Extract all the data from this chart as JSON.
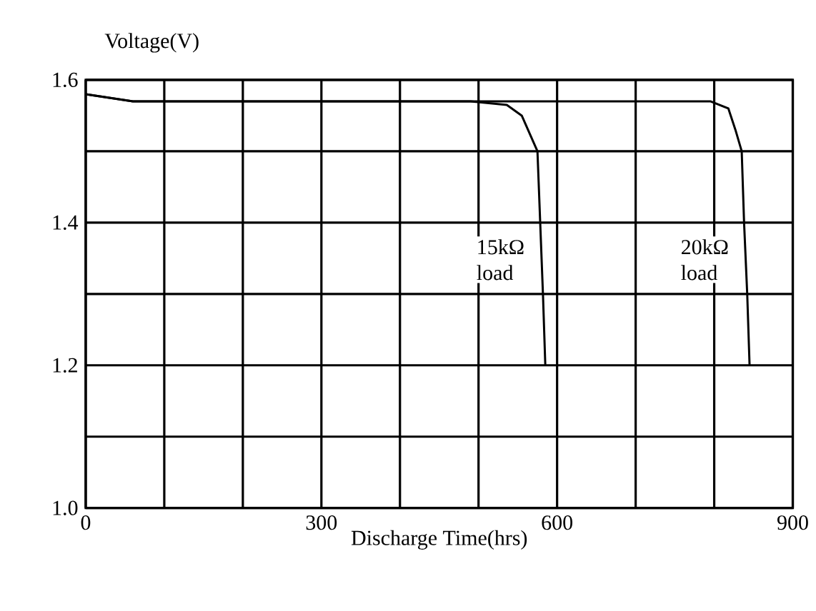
{
  "chart_data": {
    "type": "line",
    "xlabel": "Discharge Time(hrs)",
    "ylabel": "Voltage(V)",
    "xlim": [
      0,
      900
    ],
    "ylim": [
      1.0,
      1.6
    ],
    "xticks": [
      0,
      {
        "value": 100,
        "label": null
      },
      {
        "value": 200,
        "label": null
      },
      300,
      {
        "value": 400,
        "label": null
      },
      {
        "value": 500,
        "label": null
      },
      600,
      {
        "value": 700,
        "label": null
      },
      {
        "value": 800,
        "label": null
      },
      900
    ],
    "yticks": [
      {
        "value": 1.0,
        "label": "1.0"
      },
      {
        "value": 1.1,
        "label": null
      },
      1.2,
      {
        "value": 1.3,
        "label": null
      },
      1.4,
      {
        "value": 1.5,
        "label": null
      },
      1.6
    ],
    "grid": true,
    "marker": "none",
    "line_style": "solid",
    "series": [
      {
        "name": "15kΩ load",
        "color": "#000000",
        "x": [
          0,
          30,
          60,
          100,
          300,
          490,
          536,
          555,
          567,
          575,
          582,
          585
        ],
        "values": [
          1.58,
          1.575,
          1.57,
          1.57,
          1.57,
          1.57,
          1.565,
          1.55,
          1.52,
          1.5,
          1.3,
          1.2
        ]
      },
      {
        "name": "20kΩ load",
        "color": "#000000",
        "x": [
          0,
          60,
          300,
          600,
          795,
          818,
          827,
          835,
          838,
          842,
          845
        ],
        "values": [
          1.58,
          1.57,
          1.57,
          1.57,
          1.57,
          1.56,
          1.53,
          1.5,
          1.4,
          1.3,
          1.2
        ]
      }
    ]
  }
}
